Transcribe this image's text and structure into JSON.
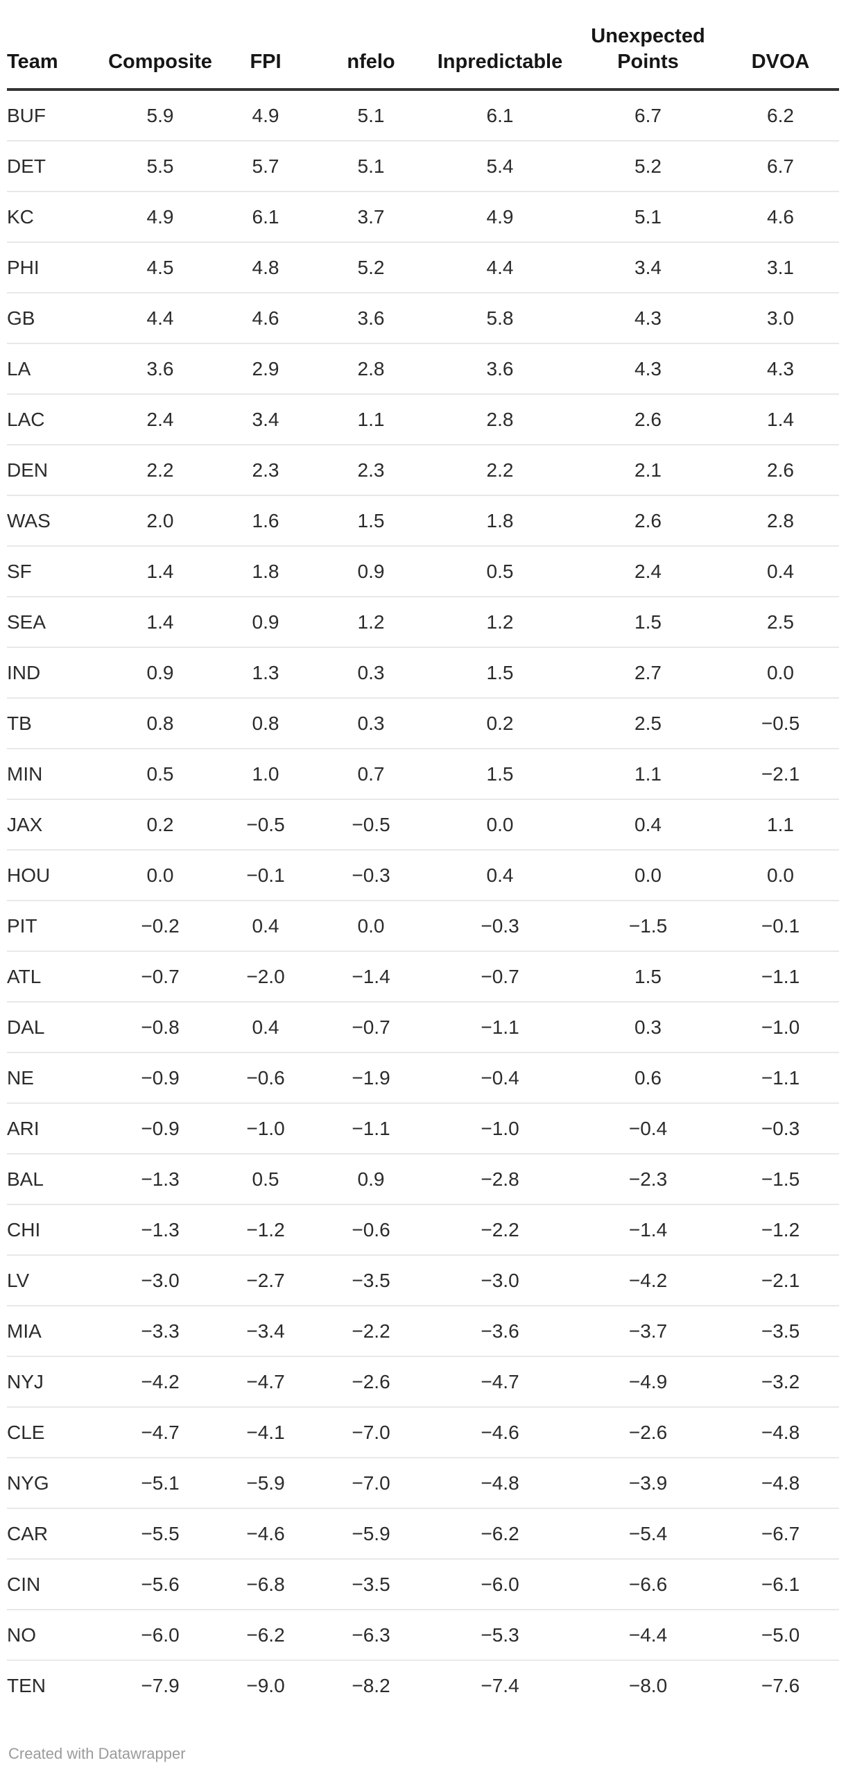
{
  "chart_data": {
    "type": "table",
    "title": "",
    "columns": [
      "Team",
      "Composite",
      "FPI",
      "nfelo",
      "Inpredictable",
      "Unexpected Points",
      "DVOA"
    ],
    "rows": [
      [
        "BUF",
        5.9,
        4.9,
        5.1,
        6.1,
        6.7,
        6.2
      ],
      [
        "DET",
        5.5,
        5.7,
        5.1,
        5.4,
        5.2,
        6.7
      ],
      [
        "KC",
        4.9,
        6.1,
        3.7,
        4.9,
        5.1,
        4.6
      ],
      [
        "PHI",
        4.5,
        4.8,
        5.2,
        4.4,
        3.4,
        3.1
      ],
      [
        "GB",
        4.4,
        4.6,
        3.6,
        5.8,
        4.3,
        3.0
      ],
      [
        "LA",
        3.6,
        2.9,
        2.8,
        3.6,
        4.3,
        4.3
      ],
      [
        "LAC",
        2.4,
        3.4,
        1.1,
        2.8,
        2.6,
        1.4
      ],
      [
        "DEN",
        2.2,
        2.3,
        2.3,
        2.2,
        2.1,
        2.6
      ],
      [
        "WAS",
        2.0,
        1.6,
        1.5,
        1.8,
        2.6,
        2.8
      ],
      [
        "SF",
        1.4,
        1.8,
        0.9,
        0.5,
        2.4,
        0.4
      ],
      [
        "SEA",
        1.4,
        0.9,
        1.2,
        1.2,
        1.5,
        2.5
      ],
      [
        "IND",
        0.9,
        1.3,
        0.3,
        1.5,
        2.7,
        0.0
      ],
      [
        "TB",
        0.8,
        0.8,
        0.3,
        0.2,
        2.5,
        -0.5
      ],
      [
        "MIN",
        0.5,
        1.0,
        0.7,
        1.5,
        1.1,
        -2.1
      ],
      [
        "JAX",
        0.2,
        -0.5,
        -0.5,
        0.0,
        0.4,
        1.1
      ],
      [
        "HOU",
        0.0,
        -0.1,
        -0.3,
        0.4,
        0.0,
        0.0
      ],
      [
        "PIT",
        -0.2,
        0.4,
        0.0,
        -0.3,
        -1.5,
        -0.1
      ],
      [
        "ATL",
        -0.7,
        -2.0,
        -1.4,
        -0.7,
        1.5,
        -1.1
      ],
      [
        "DAL",
        -0.8,
        0.4,
        -0.7,
        -1.1,
        0.3,
        -1.0
      ],
      [
        "NE",
        -0.9,
        -0.6,
        -1.9,
        -0.4,
        0.6,
        -1.1
      ],
      [
        "ARI",
        -0.9,
        -1.0,
        -1.1,
        -1.0,
        -0.4,
        -0.3
      ],
      [
        "BAL",
        -1.3,
        0.5,
        0.9,
        -2.8,
        -2.3,
        -1.5
      ],
      [
        "CHI",
        -1.3,
        -1.2,
        -0.6,
        -2.2,
        -1.4,
        -1.2
      ],
      [
        "LV",
        -3.0,
        -2.7,
        -3.5,
        -3.0,
        -4.2,
        -2.1
      ],
      [
        "MIA",
        -3.3,
        -3.4,
        -2.2,
        -3.6,
        -3.7,
        -3.5
      ],
      [
        "NYJ",
        -4.2,
        -4.7,
        -2.6,
        -4.7,
        -4.9,
        -3.2
      ],
      [
        "CLE",
        -4.7,
        -4.1,
        -7.0,
        -4.6,
        -2.6,
        -4.8
      ],
      [
        "NYG",
        -5.1,
        -5.9,
        -7.0,
        -4.8,
        -3.9,
        -4.8
      ],
      [
        "CAR",
        -5.5,
        -4.6,
        -5.9,
        -6.2,
        -5.4,
        -6.7
      ],
      [
        "CIN",
        -5.6,
        -6.8,
        -3.5,
        -6.0,
        -6.6,
        -6.1
      ],
      [
        "NO",
        -6.0,
        -6.2,
        -6.3,
        -5.3,
        -4.4,
        -5.0
      ],
      [
        "TEN",
        -7.9,
        -9.0,
        -8.2,
        -7.4,
        -8.0,
        -7.6
      ]
    ],
    "value_format": "one_decimal_unicode_minus",
    "layout": {
      "first_column_align": "left",
      "value_align": "center",
      "grid": "horizontal-rules-only",
      "legend_position": "none"
    },
    "credit": "Created with Datawrapper"
  },
  "colors": {
    "header_text": "#161616",
    "header_rule": "#333333",
    "cell_text": "#2b2b2b",
    "row_divider": "#e8e8e8",
    "credit_text": "#9b9b9b",
    "background": "#ffffff"
  }
}
